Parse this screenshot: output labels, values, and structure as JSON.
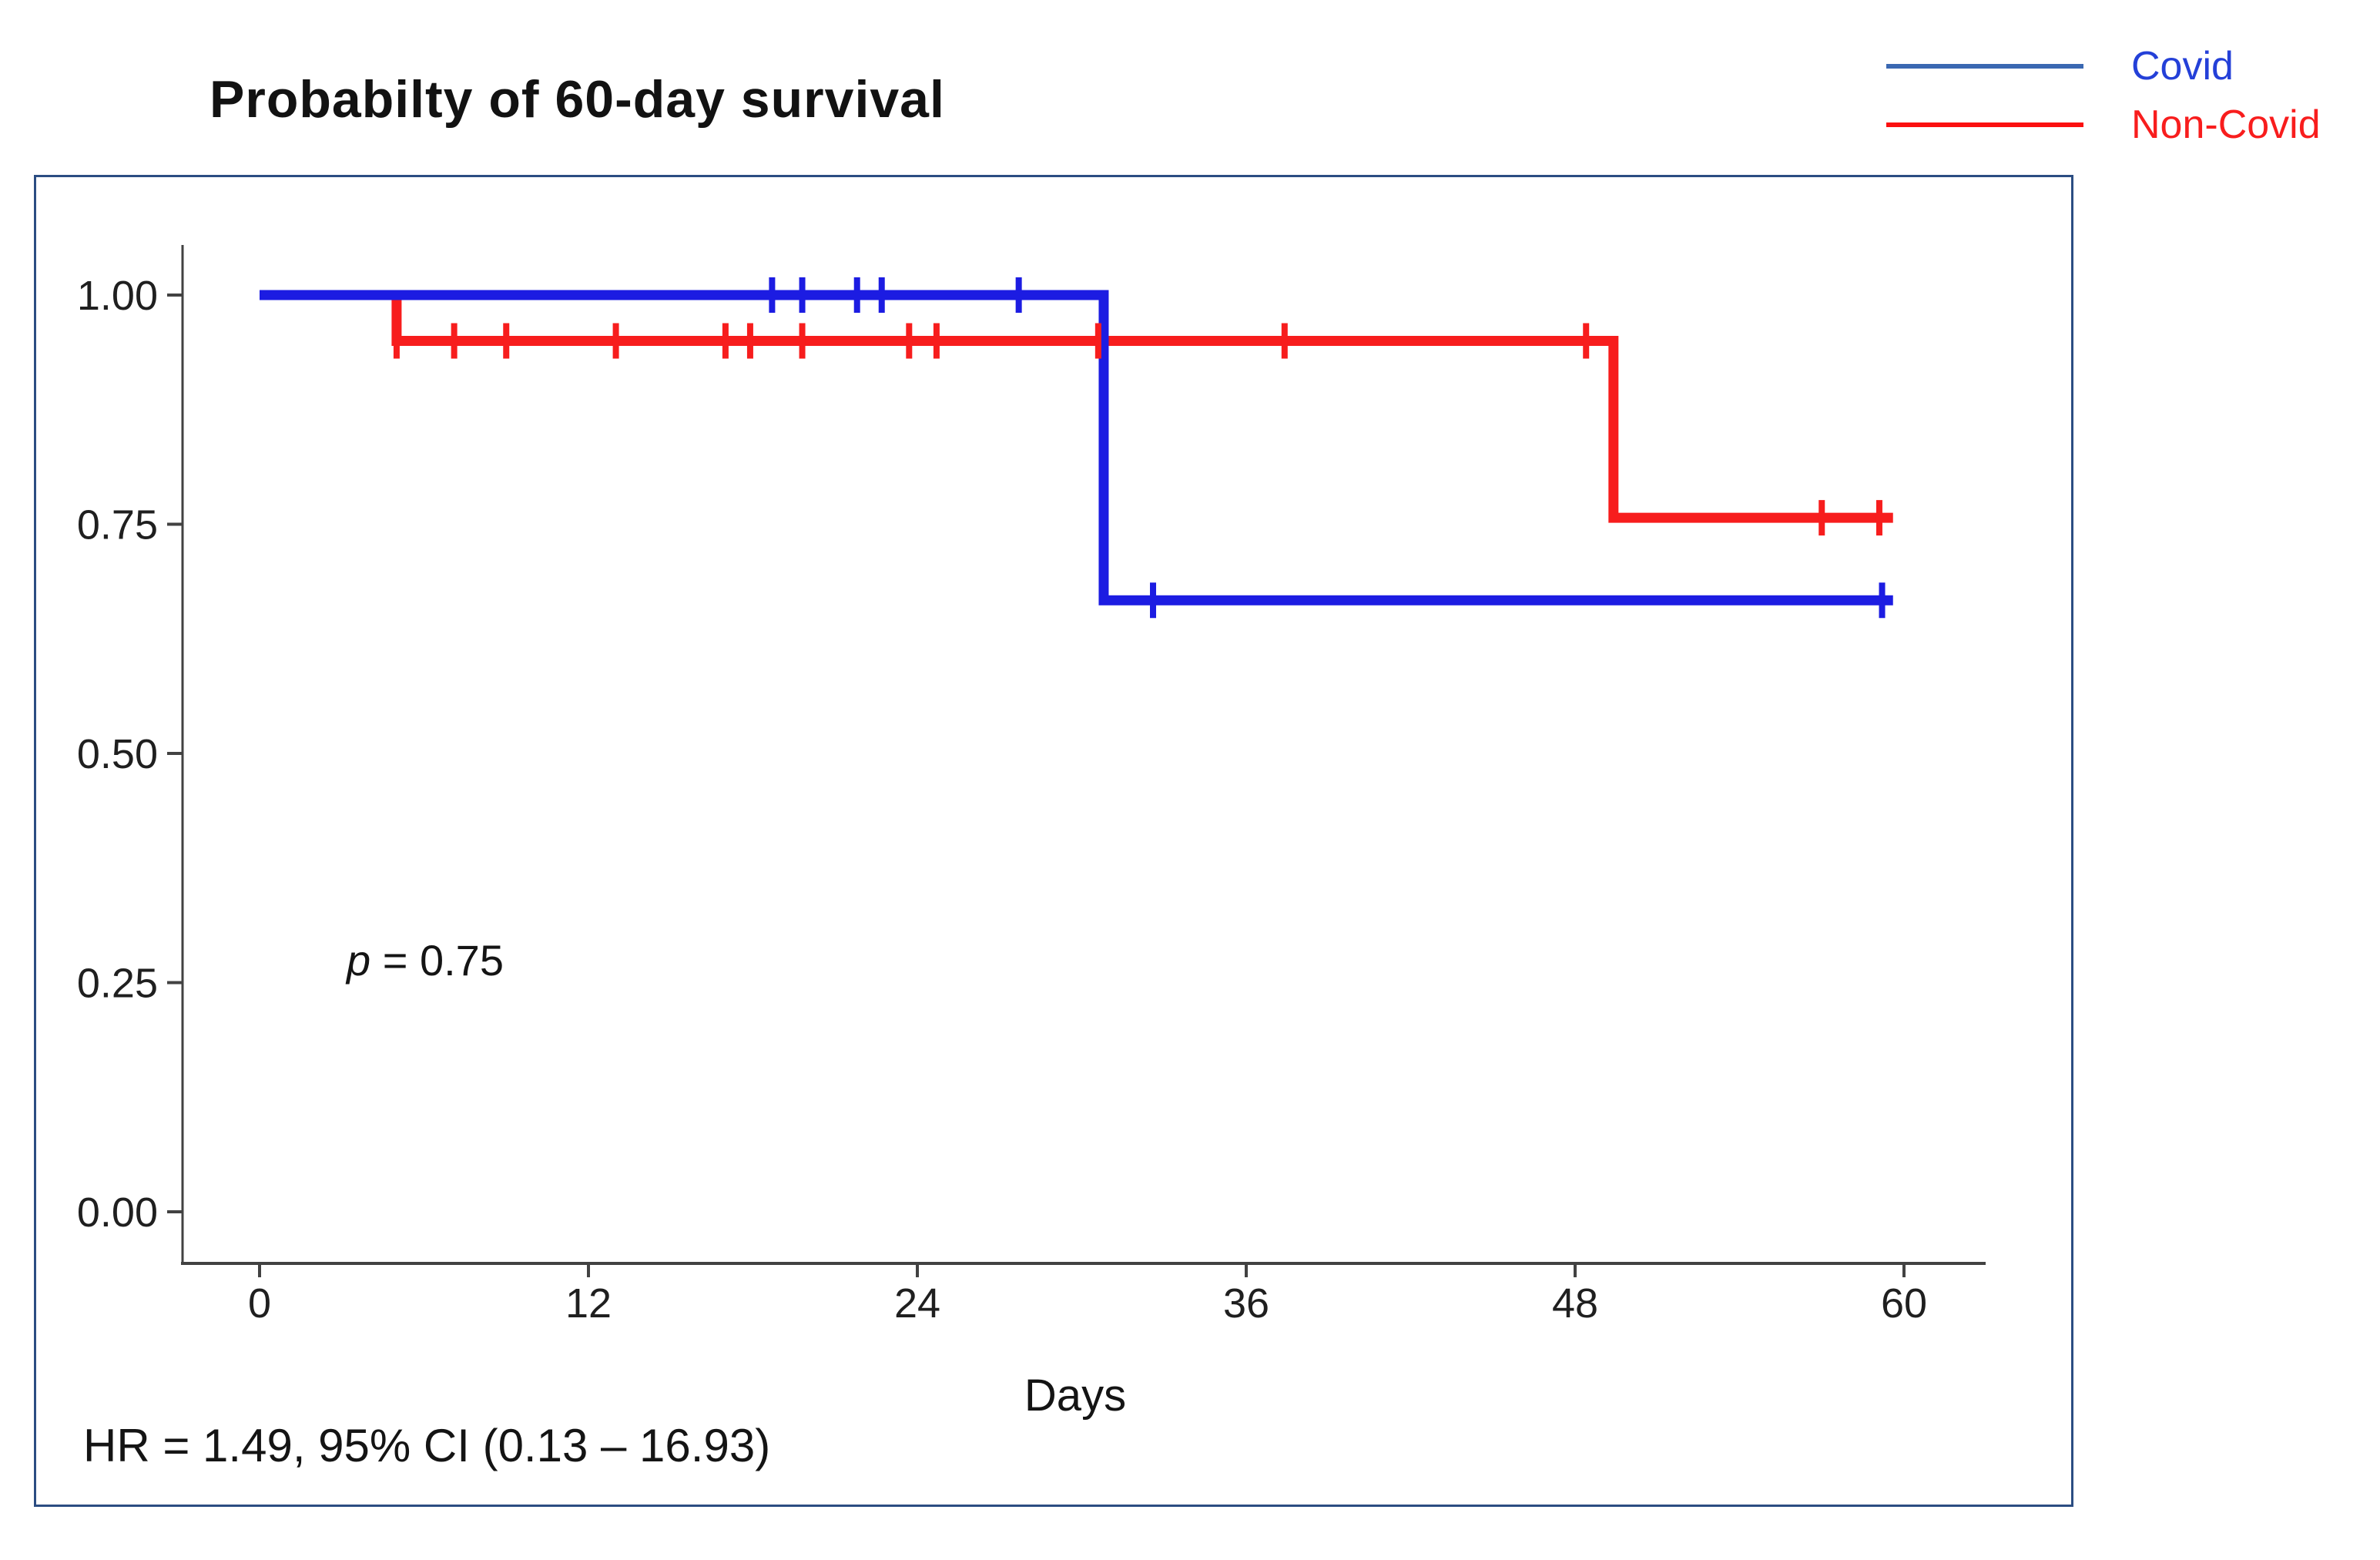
{
  "chart_data": {
    "type": "line",
    "subtype": "kaplan-meier-step",
    "title": "Probabilty of 60-day survival",
    "xlabel": "Days",
    "ylabel": "",
    "xlim": [
      0,
      63
    ],
    "ylim": [
      0,
      1.05
    ],
    "x_ticks": [
      0,
      12,
      24,
      36,
      48,
      60
    ],
    "y_ticks": [
      1.0,
      0.75,
      0.5,
      0.25,
      0.0
    ],
    "y_tick_labels": [
      "1.00",
      "0.75",
      "0.50",
      "0.25",
      "0.00"
    ],
    "grid": false,
    "legend": {
      "position": "top-right-outside",
      "items": [
        {
          "label": "Covid",
          "line_color": "#3a68b2",
          "text_color": "#2440d8"
        },
        {
          "label": "Non-Covid",
          "line_color": "#fb1010",
          "text_color": "#f81d1d"
        }
      ]
    },
    "series": [
      {
        "name": "Covid",
        "color": "#1c1ce2",
        "points": [
          [
            0,
            1.0
          ],
          [
            30.8,
            1.0
          ],
          [
            30.8,
            0.667
          ],
          [
            59.6,
            0.667
          ]
        ],
        "censor_marks": [
          [
            18.7,
            1.0
          ],
          [
            19.8,
            1.0
          ],
          [
            21.8,
            1.0
          ],
          [
            22.7,
            1.0
          ],
          [
            27.7,
            1.0
          ],
          [
            32.6,
            0.667
          ],
          [
            59.2,
            0.667
          ]
        ]
      },
      {
        "name": "Non-Covid",
        "color": "#f71d1d",
        "points": [
          [
            0,
            1.0
          ],
          [
            5,
            1.0
          ],
          [
            5,
            0.95
          ],
          [
            49.4,
            0.95
          ],
          [
            49.4,
            0.757
          ],
          [
            59.6,
            0.757
          ]
        ],
        "censor_marks": [
          [
            5,
            0.95
          ],
          [
            7.1,
            0.95
          ],
          [
            9,
            0.95
          ],
          [
            13,
            0.95
          ],
          [
            17,
            0.95
          ],
          [
            17.9,
            0.95
          ],
          [
            19.8,
            0.95
          ],
          [
            23.7,
            0.95
          ],
          [
            24.7,
            0.95
          ],
          [
            30.6,
            0.95
          ],
          [
            37.4,
            0.95
          ],
          [
            48.4,
            0.95
          ],
          [
            57,
            0.757
          ],
          [
            59.1,
            0.757
          ]
        ],
        "draw_under": true
      }
    ],
    "annotations": {
      "p_italic": "p",
      "p_text": " = 0.75",
      "p_value_full": "p = 0.75",
      "hr_text": "HR = 1.49, 95% CI (0.13 – 16.93)"
    },
    "colors": {
      "plot_border": "#2b4d82",
      "axis": "#424242",
      "text": "#1f1f1f"
    }
  }
}
